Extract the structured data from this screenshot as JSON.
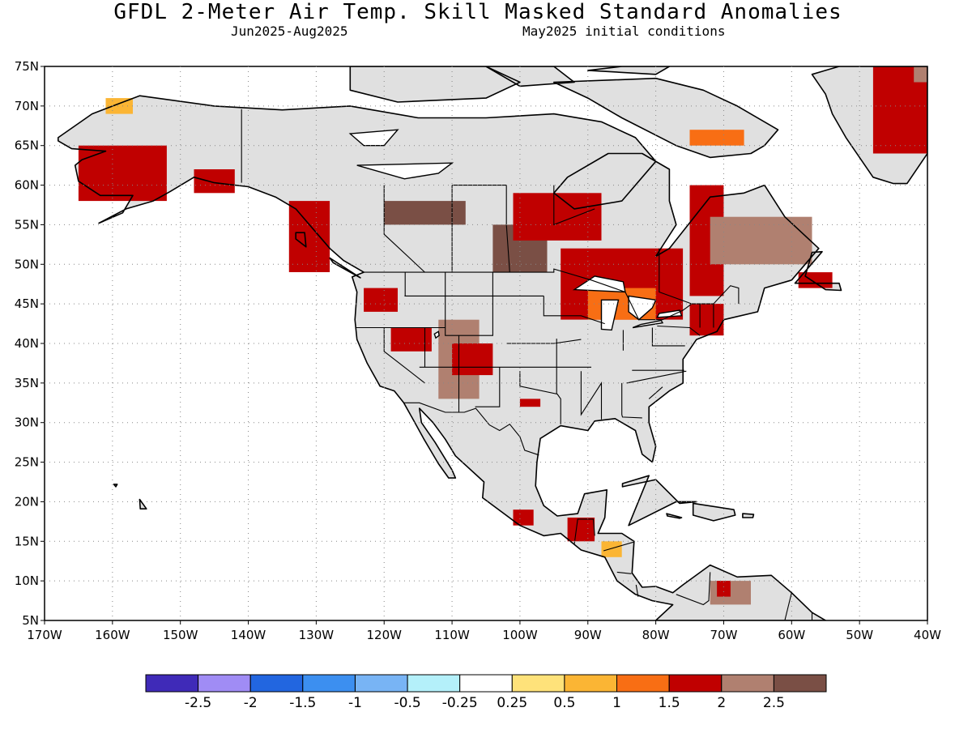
{
  "header": {
    "title": "GFDL 2-Meter Air Temp. Skill Masked Standard Anomalies",
    "period": "Jun2025-Aug2025",
    "init": "May2025 initial conditions"
  },
  "axes": {
    "lat_labels": [
      "75N",
      "70N",
      "65N",
      "60N",
      "55N",
      "50N",
      "45N",
      "40N",
      "35N",
      "30N",
      "25N",
      "20N",
      "15N",
      "10N",
      "5N"
    ],
    "lon_labels": [
      "170W",
      "160W",
      "150W",
      "140W",
      "130W",
      "120W",
      "110W",
      "100W",
      "90W",
      "80W",
      "70W",
      "60W",
      "50W",
      "40W"
    ],
    "lat_range": [
      5,
      75
    ],
    "lon_range": [
      -170,
      -40
    ],
    "grid": "dotted"
  },
  "colorbar": {
    "labels": [
      "-2.5",
      "-2",
      "-1.5",
      "-1",
      "-0.5",
      "-0.25",
      "0.25",
      "0.5",
      "1",
      "1.5",
      "2",
      "2.5"
    ],
    "colors": [
      "#3f2ab8",
      "#a08cf5",
      "#2266e0",
      "#3c8ff0",
      "#78b4f5",
      "#b4f0fa",
      "#ffffff",
      "#fee27a",
      "#fbb534",
      "#f86e14",
      "#c00000",
      "#b08070",
      "#7a4f45"
    ]
  },
  "map_layers": {
    "land_mask_color": "#e0e0e0",
    "regions": [
      {
        "name": "Alaska west",
        "lon": [
          -165,
          -152
        ],
        "lat": [
          58,
          65
        ],
        "class": 2
      },
      {
        "name": "Alaska south",
        "lon": [
          -148,
          -142
        ],
        "lat": [
          59,
          62
        ],
        "class": 2
      },
      {
        "name": "Alaska north spot",
        "lon": [
          -161,
          -157
        ],
        "lat": [
          69,
          71
        ],
        "class": 0.5
      },
      {
        "name": "BC coast",
        "lon": [
          -134,
          -128
        ],
        "lat": [
          49,
          58
        ],
        "class": 2
      },
      {
        "name": "Pacific NW",
        "lon": [
          -123,
          -118
        ],
        "lat": [
          44,
          47
        ],
        "class": 2
      },
      {
        "name": "Great Basin",
        "lon": [
          -119,
          -113
        ],
        "lat": [
          39,
          42
        ],
        "class": 2
      },
      {
        "name": "Rockies",
        "lon": [
          -112,
          -106
        ],
        "lat": [
          33,
          43
        ],
        "class": 2.5
      },
      {
        "name": "Colorado",
        "lon": [
          -110,
          -104
        ],
        "lat": [
          36,
          40
        ],
        "class": 2
      },
      {
        "name": "Saskatchewan",
        "lon": [
          -120,
          -108
        ],
        "lat": [
          55,
          58
        ],
        "class": 3
      },
      {
        "name": "Manitoba",
        "lon": [
          -104,
          -96
        ],
        "lat": [
          49,
          55
        ],
        "class": 3
      },
      {
        "name": "Hudson Bay south",
        "lon": [
          -101,
          -88
        ],
        "lat": [
          53,
          59
        ],
        "class": 2
      },
      {
        "name": "Ontario",
        "lon": [
          -94,
          -76
        ],
        "lat": [
          43,
          52
        ],
        "class": 2
      },
      {
        "name": "Great Lakes",
        "lon": [
          -90,
          -80
        ],
        "lat": [
          43,
          47
        ],
        "class": 1.5
      },
      {
        "name": "Quebec",
        "lon": [
          -75,
          -70
        ],
        "lat": [
          46,
          60
        ],
        "class": 2
      },
      {
        "name": "Labrador",
        "lon": [
          -72,
          -57
        ],
        "lat": [
          50,
          56
        ],
        "class": 2.5
      },
      {
        "name": "New England",
        "lon": [
          -75,
          -70
        ],
        "lat": [
          41,
          45
        ],
        "class": 2
      },
      {
        "name": "Newfoundland",
        "lon": [
          -59,
          -54
        ],
        "lat": [
          47,
          49
        ],
        "class": 2
      },
      {
        "name": "Baffin south",
        "lon": [
          -75,
          -67
        ],
        "lat": [
          65,
          67
        ],
        "class": 1.5
      },
      {
        "name": "Greenland",
        "lon": [
          -48,
          -40
        ],
        "lat": [
          64,
          75
        ],
        "class": 2
      },
      {
        "name": "Greenland brown",
        "lon": [
          -42,
          -40
        ],
        "lat": [
          73,
          75
        ],
        "class": 2.5
      },
      {
        "name": "Texas",
        "lon": [
          -100,
          -97
        ],
        "lat": [
          32,
          33
        ],
        "class": 2
      },
      {
        "name": "Mexico south",
        "lon": [
          -101,
          -98
        ],
        "lat": [
          17,
          19
        ],
        "class": 2
      },
      {
        "name": "Yucatan",
        "lon": [
          -93,
          -89
        ],
        "lat": [
          15,
          18
        ],
        "class": 2
      },
      {
        "name": "Honduras",
        "lon": [
          -88,
          -85
        ],
        "lat": [
          13,
          15
        ],
        "class": 0.5
      },
      {
        "name": "Venezuela",
        "lon": [
          -72,
          -66
        ],
        "lat": [
          7,
          10
        ],
        "class": 2.5
      },
      {
        "name": "Venezuela red",
        "lon": [
          -71,
          -69
        ],
        "lat": [
          8,
          10
        ],
        "class": 2
      }
    ]
  }
}
